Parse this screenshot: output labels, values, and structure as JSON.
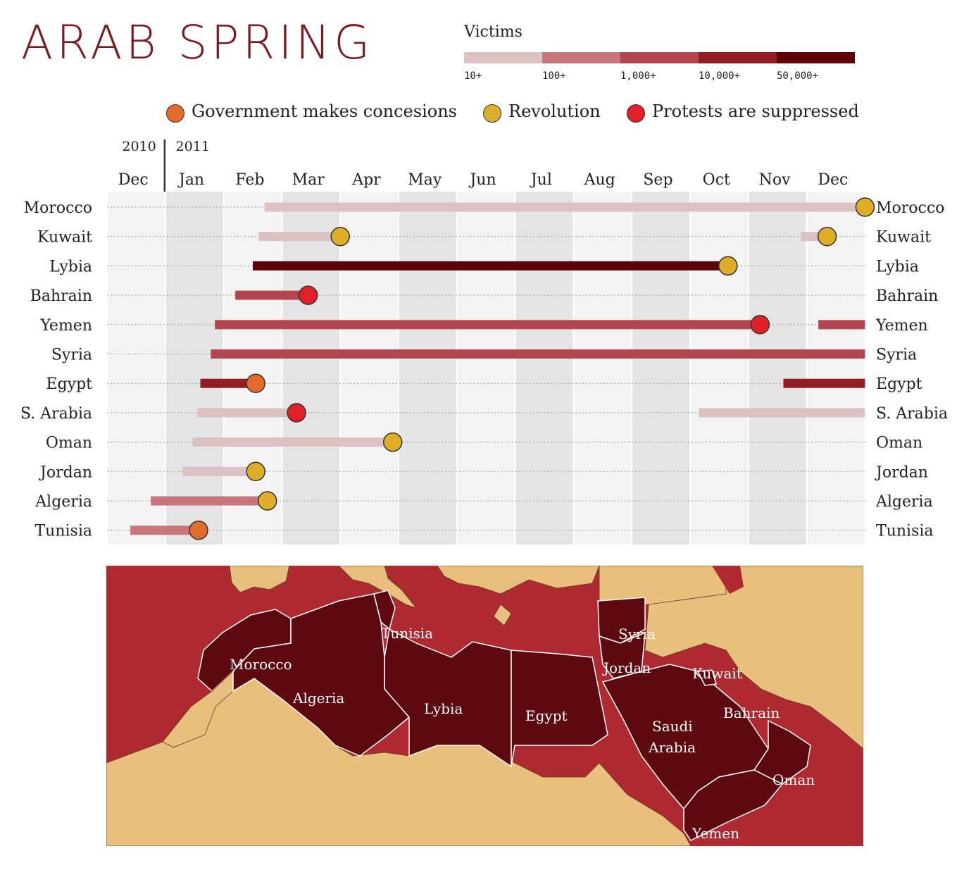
{
  "title": "ARAB SPRING",
  "victims_scale": {
    "title": "Victims",
    "levels": [
      {
        "label": "10+",
        "color": "#dcc1c3"
      },
      {
        "label": "100+",
        "color": "#c9757c"
      },
      {
        "label": "1,000+",
        "color": "#b2454d"
      },
      {
        "label": "10,000+",
        "color": "#921d24"
      },
      {
        "label": "50,000+",
        "color": "#5c0309"
      }
    ]
  },
  "outcome_legend": [
    {
      "label": "Government makes concesions",
      "color": "#e36c2a"
    },
    {
      "label": "Revolution",
      "color": "#dfae29"
    },
    {
      "label": "Protests are suppressed",
      "color": "#e01f29"
    }
  ],
  "chart_data": {
    "type": "timeline",
    "years": [
      "2010",
      "2011"
    ],
    "months": [
      "Dec",
      "Jan",
      "Feb",
      "Mar",
      "Apr",
      "May",
      "Jun",
      "Jul",
      "Aug",
      "Sep",
      "Oct",
      "Nov",
      "Dec"
    ],
    "x_unit": "months since 1 Dec 2010",
    "x_range": [
      0,
      13
    ],
    "rows": [
      {
        "country": "Morocco",
        "segments": [
          {
            "start": 2.7,
            "end": 13.0,
            "level": 0
          }
        ],
        "events": [
          {
            "x": 13.0,
            "type": 1
          }
        ]
      },
      {
        "country": "Kuwait",
        "segments": [
          {
            "start": 2.6,
            "end": 4.0,
            "level": 0
          },
          {
            "start": 11.9,
            "end": 12.35,
            "level": 0
          }
        ],
        "events": [
          {
            "x": 4.0,
            "type": 1
          },
          {
            "x": 12.35,
            "type": 1
          }
        ]
      },
      {
        "country": "Lybia",
        "segments": [
          {
            "start": 2.5,
            "end": 10.65,
            "level": 4
          }
        ],
        "events": [
          {
            "x": 10.65,
            "type": 1
          }
        ]
      },
      {
        "country": "Bahrain",
        "segments": [
          {
            "start": 2.2,
            "end": 3.45,
            "level": 2
          }
        ],
        "events": [
          {
            "x": 3.45,
            "type": 2
          }
        ]
      },
      {
        "country": "Yemen",
        "segments": [
          {
            "start": 1.85,
            "end": 11.2,
            "level": 2
          },
          {
            "start": 12.2,
            "end": 13.0,
            "level": 2
          }
        ],
        "events": [
          {
            "x": 11.2,
            "type": 2
          }
        ]
      },
      {
        "country": "Syria",
        "segments": [
          {
            "start": 1.78,
            "end": 13.0,
            "level": 2
          }
        ],
        "events": []
      },
      {
        "country": "Egypt",
        "segments": [
          {
            "start": 1.6,
            "end": 2.55,
            "level": 3
          },
          {
            "start": 11.6,
            "end": 13.0,
            "level": 3
          }
        ],
        "events": [
          {
            "x": 2.55,
            "type": 0
          }
        ]
      },
      {
        "country": "S. Arabia",
        "segments": [
          {
            "start": 1.55,
            "end": 3.25,
            "level": 0
          },
          {
            "start": 10.15,
            "end": 13.0,
            "level": 0
          }
        ],
        "events": [
          {
            "x": 3.25,
            "type": 2
          }
        ]
      },
      {
        "country": "Oman",
        "segments": [
          {
            "start": 1.47,
            "end": 4.9,
            "level": 0
          }
        ],
        "events": [
          {
            "x": 4.9,
            "type": 1
          }
        ]
      },
      {
        "country": "Jordan",
        "segments": [
          {
            "start": 1.3,
            "end": 2.55,
            "level": 0
          }
        ],
        "events": [
          {
            "x": 2.55,
            "type": 1
          }
        ]
      },
      {
        "country": "Algeria",
        "segments": [
          {
            "start": 0.75,
            "end": 2.75,
            "level": 1
          }
        ],
        "events": [
          {
            "x": 2.75,
            "type": 1
          }
        ]
      },
      {
        "country": "Tunisia",
        "segments": [
          {
            "start": 0.4,
            "end": 1.57,
            "level": 1
          }
        ],
        "events": [
          {
            "x": 1.57,
            "type": 0
          }
        ]
      }
    ]
  },
  "map": {
    "labels": [
      "Morocco",
      "Algeria",
      "Tunisia",
      "Lybia",
      "Egypt",
      "Syria",
      "Jordan",
      "Kuwait",
      "Bahrain",
      "Saudi",
      "Arabia",
      "Oman",
      "Yemen"
    ]
  }
}
